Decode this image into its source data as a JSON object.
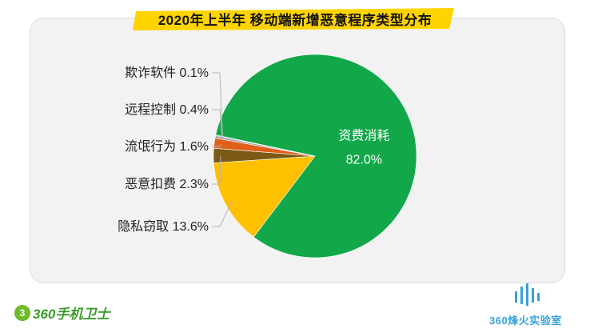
{
  "title": "2020年上半年 移动端新增恶意程序类型分布",
  "chart_data": {
    "type": "pie",
    "title": "2020年上半年 移动端新增恶意程序类型分布",
    "slices": [
      {
        "name": "资费消耗",
        "value": 82.0,
        "label": "82.0%",
        "color": "#12a84a"
      },
      {
        "name": "隐私窃取",
        "value": 13.6,
        "label": "13.6%",
        "color": "#ffc000"
      },
      {
        "name": "恶意扣费",
        "value": 2.3,
        "label": "2.3%",
        "color": "#7a5a14"
      },
      {
        "name": "流氓行为",
        "value": 1.6,
        "label": "1.6%",
        "color": "#e0601a"
      },
      {
        "name": "远程控制",
        "value": 0.4,
        "label": "0.4%",
        "color": "#a9a9a9"
      },
      {
        "name": "欺诈软件",
        "value": 0.1,
        "label": "0.1%",
        "color": "#4472c4"
      }
    ],
    "outside_labels": [
      "欺诈软件 0.1%",
      "远程控制 0.4%",
      "流氓行为 1.6%",
      "恶意扣费 2.3%",
      "隐私窃取 13.6%"
    ]
  },
  "branding": {
    "left_logo_text": "360手机卫士",
    "left_logo_mark": "3",
    "right_logo_text": "360烽火实验室"
  },
  "colors": {
    "banner": "#ffd400",
    "panel": "#f2f2f2"
  }
}
